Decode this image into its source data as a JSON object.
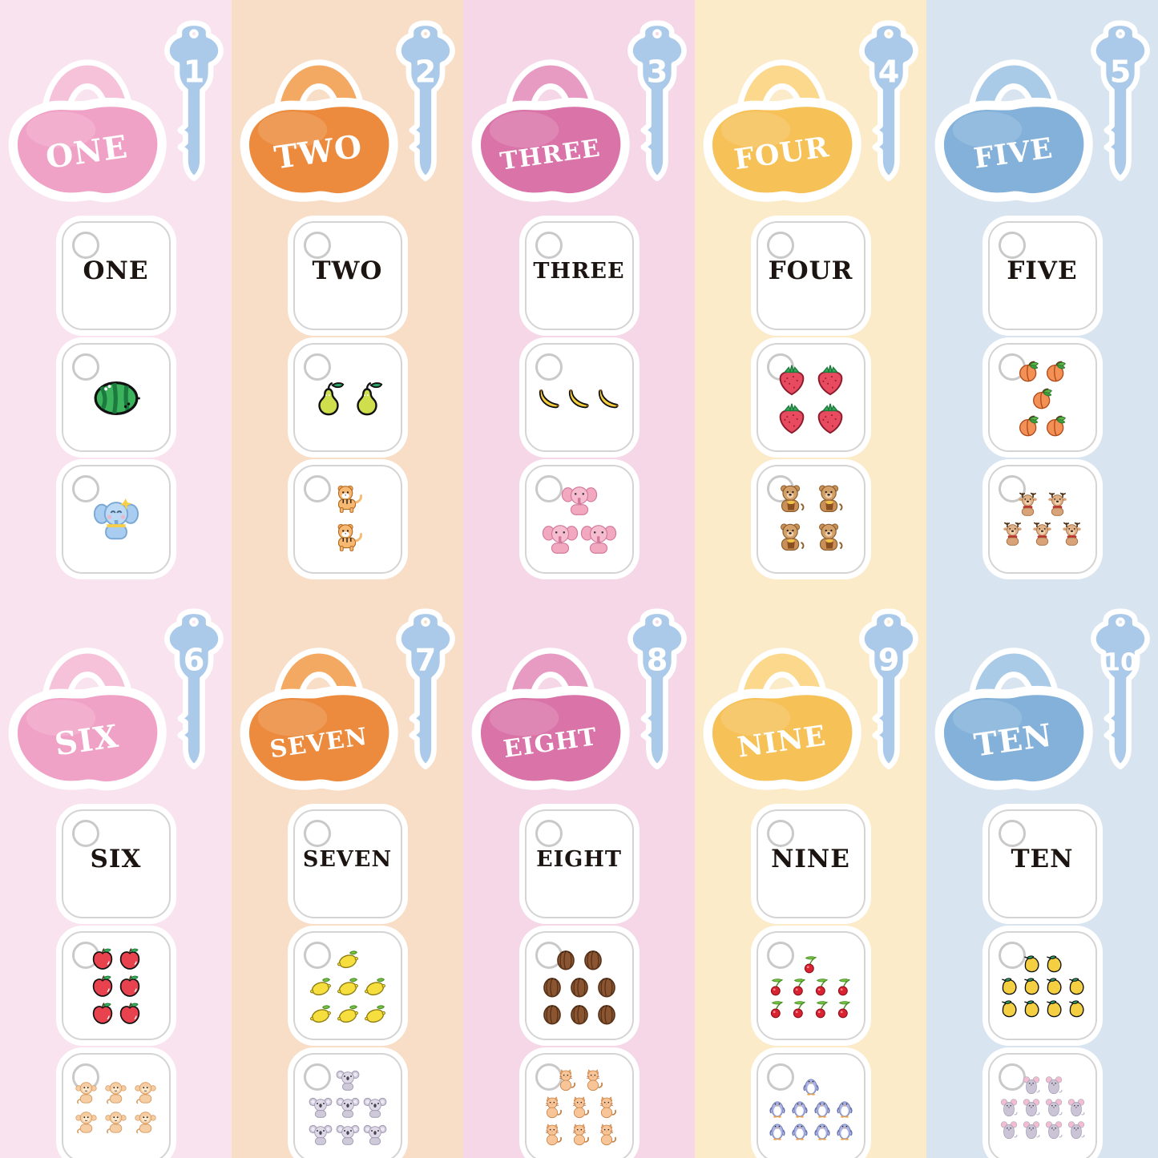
{
  "palette": {
    "key_blue": "#abcae9",
    "card_border": "#d4d4d4",
    "outline_white": "#ffffff",
    "word_text": "#1c1410"
  },
  "columns": [
    {
      "bg": "#f8e3ef",
      "sets": [
        {
          "lock_label": "ONE",
          "key_number": "1",
          "colors": {
            "body": "#f0a2c6",
            "handle": "#f6c2da"
          },
          "word": "ONE",
          "fruit": {
            "icon": "watermelon",
            "count": 1,
            "rows": [
              1
            ]
          },
          "animal": {
            "icon": "elephant-blue",
            "count": 1,
            "rows": [
              1
            ]
          }
        },
        {
          "lock_label": "SIX",
          "key_number": "6",
          "colors": {
            "body": "#f0a2c6",
            "handle": "#f6c2da"
          },
          "word": "SIX",
          "fruit": {
            "icon": "apple",
            "count": 6,
            "rows": [
              2,
              2,
              2
            ]
          },
          "animal": {
            "icon": "monkey",
            "count": 6,
            "rows": [
              3,
              3
            ]
          }
        }
      ]
    },
    {
      "bg": "#f8ddc7",
      "sets": [
        {
          "lock_label": "TWO",
          "key_number": "2",
          "colors": {
            "body": "#ec8b3d",
            "handle": "#f3a961"
          },
          "word": "TWO",
          "fruit": {
            "icon": "pear",
            "count": 2,
            "rows": [
              2
            ]
          },
          "animal": {
            "icon": "tiger",
            "count": 2,
            "rows": [
              1,
              1
            ]
          }
        },
        {
          "lock_label": "SEVEN",
          "key_number": "7",
          "colors": {
            "body": "#ec8b3d",
            "handle": "#f3a961"
          },
          "word": "SEVEN",
          "fruit": {
            "icon": "lemon",
            "count": 7,
            "rows": [
              1,
              3,
              3
            ]
          },
          "animal": {
            "icon": "koala",
            "count": 7,
            "rows": [
              1,
              3,
              3
            ]
          }
        }
      ]
    },
    {
      "bg": "#f5d7e8",
      "sets": [
        {
          "lock_label": "THREE",
          "key_number": "3",
          "colors": {
            "body": "#d973a8",
            "handle": "#e79ac2"
          },
          "word": "THREE",
          "fruit": {
            "icon": "banana",
            "count": 3,
            "rows": [
              3
            ]
          },
          "animal": {
            "icon": "elephant-pink",
            "count": 3,
            "rows": [
              1,
              2
            ]
          }
        },
        {
          "lock_label": "EIGHT",
          "key_number": "8",
          "colors": {
            "body": "#d973a8",
            "handle": "#e79ac2"
          },
          "word": "EIGHT",
          "fruit": {
            "icon": "walnut",
            "count": 8,
            "rows": [
              2,
              3,
              3
            ]
          },
          "animal": {
            "icon": "cat",
            "count": 8,
            "rows": [
              2,
              3,
              3
            ]
          }
        }
      ]
    },
    {
      "bg": "#fbebc9",
      "sets": [
        {
          "lock_label": "FOUR",
          "key_number": "4",
          "colors": {
            "body": "#f6c157",
            "handle": "#fbd88b"
          },
          "word": "FOUR",
          "fruit": {
            "icon": "strawberry",
            "count": 4,
            "rows": [
              2,
              2
            ]
          },
          "animal": {
            "icon": "bear",
            "count": 4,
            "rows": [
              2,
              2
            ]
          }
        },
        {
          "lock_label": "NINE",
          "key_number": "9",
          "colors": {
            "body": "#f6c157",
            "handle": "#fbd88b"
          },
          "word": "NINE",
          "fruit": {
            "icon": "cherry",
            "count": 9,
            "rows": [
              1,
              4,
              4
            ]
          },
          "animal": {
            "icon": "penguin",
            "count": 9,
            "rows": [
              1,
              4,
              4
            ]
          }
        }
      ]
    },
    {
      "bg": "#d8e4f0",
      "sets": [
        {
          "lock_label": "FIVE",
          "key_number": "5",
          "colors": {
            "body": "#83b1d9",
            "handle": "#aacbe7"
          },
          "word": "FIVE",
          "fruit": {
            "icon": "peach",
            "count": 5,
            "rows": [
              2,
              1,
              2
            ]
          },
          "animal": {
            "icon": "reindeer",
            "count": 5,
            "rows": [
              2,
              3
            ]
          }
        },
        {
          "lock_label": "TEN",
          "key_number": "10",
          "colors": {
            "body": "#83b1d9",
            "handle": "#aacbe7"
          },
          "word": "TEN",
          "fruit": {
            "icon": "mango",
            "count": 10,
            "rows": [
              2,
              4,
              4
            ]
          },
          "animal": {
            "icon": "mouse",
            "count": 10,
            "rows": [
              2,
              4,
              4
            ]
          }
        }
      ]
    }
  ]
}
